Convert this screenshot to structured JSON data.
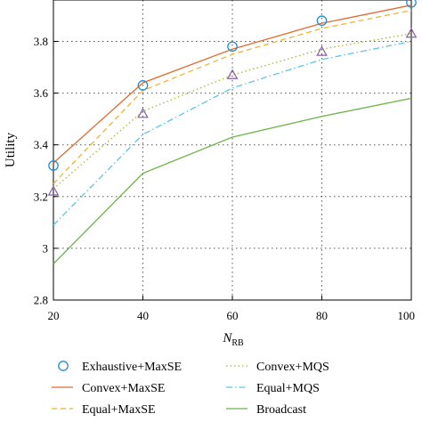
{
  "chart_data": {
    "type": "line",
    "x": [
      20,
      40,
      60,
      80,
      100
    ],
    "xlim": [
      20,
      100
    ],
    "ylim": [
      2.8,
      3.96
    ],
    "xticks": [
      "20",
      "40",
      "60",
      "80",
      "100"
    ],
    "yticks": [
      "2.8",
      "3",
      "3.2",
      "3.4",
      "3.6",
      "3.8"
    ],
    "xlabel_main": "N",
    "xlabel_sub": "RB",
    "ylabel": "Utility",
    "grid": true,
    "legend_placement": "bottom",
    "series": [
      {
        "name": "Exhaustive+MaxSE",
        "values": [
          3.32,
          3.63,
          3.78,
          3.88,
          3.95
        ],
        "color": "#1f8fd1",
        "style": "markers-circle"
      },
      {
        "name": "Convex+MaxSE",
        "values": [
          3.33,
          3.64,
          3.77,
          3.87,
          3.94
        ],
        "color": "#e36a2e",
        "style": "solid"
      },
      {
        "name": "Equal+MaxSE",
        "values": [
          3.25,
          3.61,
          3.75,
          3.85,
          3.92
        ],
        "color": "#f2b22e",
        "style": "dashed"
      },
      {
        "name": "Convex+MQS",
        "values": [
          3.23,
          3.53,
          3.67,
          3.77,
          3.83
        ],
        "color": "#a8b832",
        "style": "dotted"
      },
      {
        "name": "Equal+MQS",
        "values": [
          3.09,
          3.44,
          3.62,
          3.73,
          3.8
        ],
        "color": "#5bc6e6",
        "style": "dashdot"
      },
      {
        "name": "Broadcast",
        "values": [
          2.94,
          3.29,
          3.43,
          3.51,
          3.58
        ],
        "color": "#6ab445",
        "style": "solid"
      }
    ],
    "markers": {
      "triangle": {
        "values": [
          3.22,
          3.52,
          3.67,
          3.76,
          3.83
        ],
        "color": "#8d5aa8"
      }
    }
  }
}
